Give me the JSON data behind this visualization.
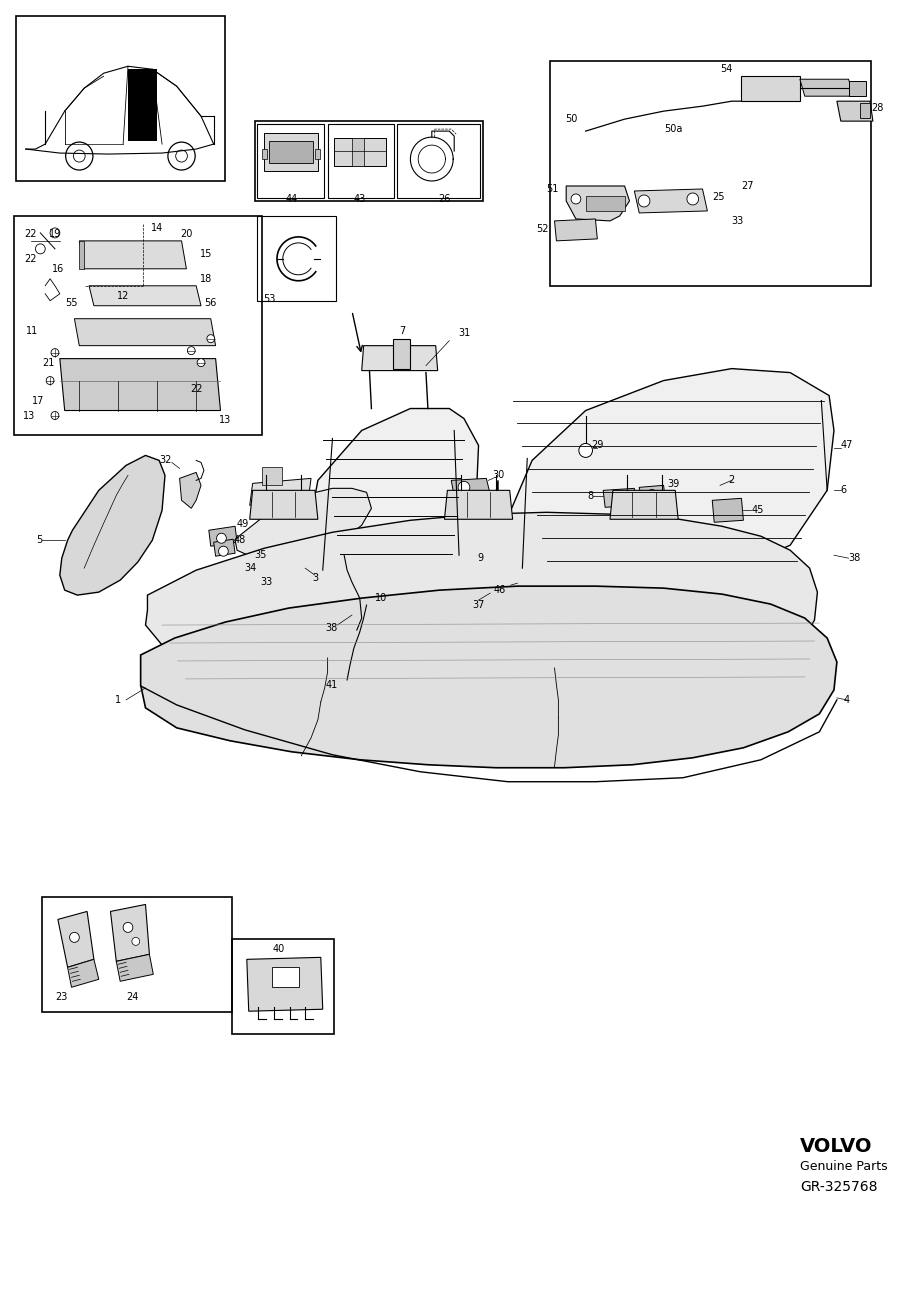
{
  "brand": "VOLVO",
  "brand_sub": "Genuine Parts",
  "part_number": "GR-325768",
  "bg_color": "#ffffff",
  "line_color": "#000000",
  "fig_width": 9.06,
  "fig_height": 12.99,
  "dpi": 100
}
